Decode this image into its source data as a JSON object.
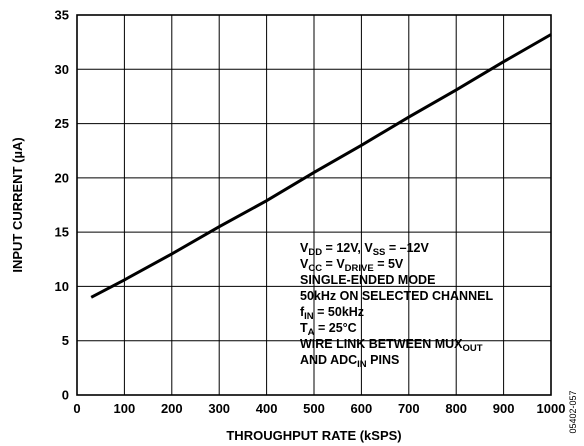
{
  "chart_data": {
    "type": "line",
    "xlabel": "THROUGHPUT RATE (kSPS)",
    "ylabel": "INPUT CURRENT (µA)",
    "xlim": [
      0,
      1000
    ],
    "ylim": [
      0,
      35
    ],
    "xticks": [
      "0",
      "100",
      "200",
      "300",
      "400",
      "500",
      "600",
      "700",
      "800",
      "900",
      "1000"
    ],
    "yticks": [
      "0",
      "5",
      "10",
      "15",
      "20",
      "25",
      "30",
      "35"
    ],
    "grid": true,
    "series": [
      {
        "x": [
          30,
          100,
          200,
          300,
          400,
          500,
          600,
          700,
          800,
          900,
          1000
        ],
        "y": [
          9.0,
          10.6,
          13.0,
          15.5,
          17.9,
          20.5,
          23.0,
          25.6,
          28.1,
          30.7,
          33.2
        ]
      }
    ],
    "annotations": [
      {
        "parts": [
          {
            "t": "V"
          },
          {
            "t": "DD",
            "sub": true
          },
          {
            "t": " = 12V, V"
          },
          {
            "t": "SS",
            "sub": true
          },
          {
            "t": " = –12V"
          }
        ]
      },
      {
        "parts": [
          {
            "t": "V"
          },
          {
            "t": "CC",
            "sub": true
          },
          {
            "t": " = V"
          },
          {
            "t": "DRIVE",
            "sub": true
          },
          {
            "t": " = 5V"
          }
        ]
      },
      {
        "parts": [
          {
            "t": "SINGLE-ENDED MODE"
          }
        ]
      },
      {
        "parts": [
          {
            "t": "50kHz ON SELECTED CHANNEL"
          }
        ]
      },
      {
        "parts": [
          {
            "t": "f"
          },
          {
            "t": "IN",
            "sub": true
          },
          {
            "t": " = 50kHz"
          }
        ]
      },
      {
        "parts": [
          {
            "t": "T"
          },
          {
            "t": "A",
            "sub": true
          },
          {
            "t": " = 25°C"
          }
        ]
      },
      {
        "parts": [
          {
            "t": "WIRE LINK BETWEEN MUX"
          },
          {
            "t": "OUT",
            "sub": true
          }
        ]
      },
      {
        "parts": [
          {
            "t": "  AND ADC"
          },
          {
            "t": "IN",
            "sub": true
          },
          {
            "t": " PINS"
          }
        ]
      }
    ],
    "figure_code": "05402-057"
  }
}
